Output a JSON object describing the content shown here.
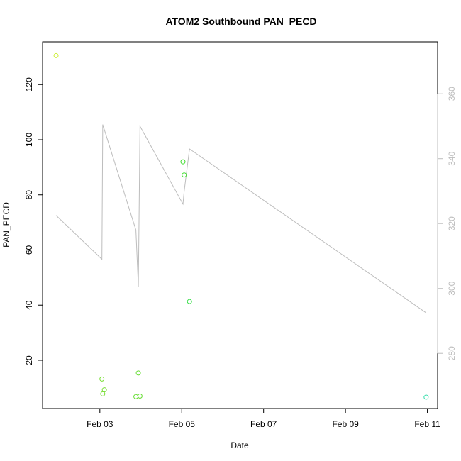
{
  "chart_data": {
    "type": "scatter",
    "title": "ATOM2 Southbound PAN_PECD",
    "xlabel": "Date",
    "ylabel": "PAN_PECD",
    "x_ticks": [
      "Feb 03",
      "Feb 05",
      "Feb 07",
      "Feb 09",
      "Feb 11"
    ],
    "x_tick_values": [
      3,
      5,
      7,
      9,
      11
    ],
    "xlim": [
      1.6,
      11.25
    ],
    "ylim": [
      2.5,
      135.5
    ],
    "y_ticks": [
      20,
      40,
      60,
      80,
      100,
      120
    ],
    "y2lim": [
      263,
      376
    ],
    "y2_ticks": [
      280,
      300,
      320,
      340,
      360
    ],
    "y2_color": "#bdbdbd",
    "grid": false,
    "points": [
      {
        "x": 1.93,
        "y": 130.5,
        "color": "#ccee33"
      },
      {
        "x": 3.05,
        "y": 13.2,
        "color": "#77dd33"
      },
      {
        "x": 3.07,
        "y": 7.8,
        "color": "#77dd33"
      },
      {
        "x": 3.11,
        "y": 9.3,
        "color": "#77dd33"
      },
      {
        "x": 3.88,
        "y": 6.8,
        "color": "#66dd33"
      },
      {
        "x": 3.94,
        "y": 15.4,
        "color": "#66dd33"
      },
      {
        "x": 3.98,
        "y": 7.0,
        "color": "#66dd33"
      },
      {
        "x": 5.03,
        "y": 92.0,
        "color": "#44dd33"
      },
      {
        "x": 5.06,
        "y": 87.2,
        "color": "#44dd33"
      },
      {
        "x": 5.19,
        "y": 41.3,
        "color": "#33dd44"
      },
      {
        "x": 10.97,
        "y": 6.6,
        "color": "#33ddaa"
      }
    ],
    "altitude_series": {
      "color": "#bdbdbd",
      "x": [
        1.93,
        3.05,
        3.07,
        3.88,
        3.94,
        3.98,
        5.03,
        5.06,
        5.19,
        10.97
      ],
      "y": [
        322.5,
        309.0,
        350.5,
        318.0,
        300.5,
        350.0,
        326.0,
        330.0,
        343.0,
        292.5
      ]
    }
  }
}
